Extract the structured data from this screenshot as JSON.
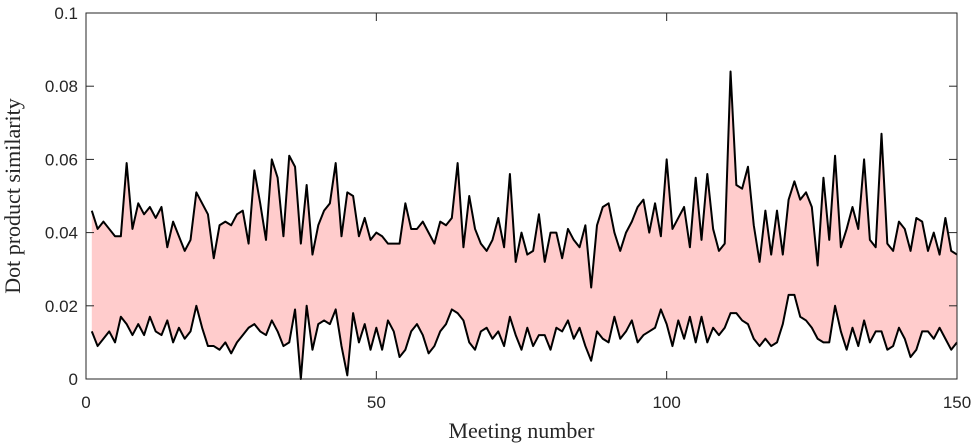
{
  "chart_data": {
    "type": "area",
    "xlabel": "Meeting number",
    "ylabel": "Dot product similarity",
    "xlim": [
      0,
      150
    ],
    "ylim": [
      0,
      0.1
    ],
    "xticks": [
      0,
      50,
      100,
      150
    ],
    "xtick_labels": [
      "0",
      "50",
      "100",
      "150"
    ],
    "yticks": [
      0,
      0.02,
      0.04,
      0.06,
      0.08,
      0.1
    ],
    "ytick_labels": [
      "0",
      "0.02",
      "0.04",
      "0.06",
      "0.08",
      "0.1"
    ],
    "grid": false,
    "band_fill_color": "#ffcccc",
    "line_color": "#000000",
    "x": [
      1,
      2,
      3,
      4,
      5,
      6,
      7,
      8,
      9,
      10,
      11,
      12,
      13,
      14,
      15,
      16,
      17,
      18,
      19,
      20,
      21,
      22,
      23,
      24,
      25,
      26,
      27,
      28,
      29,
      30,
      31,
      32,
      33,
      34,
      35,
      36,
      37,
      38,
      39,
      40,
      41,
      42,
      43,
      44,
      45,
      46,
      47,
      48,
      49,
      50,
      51,
      52,
      53,
      54,
      55,
      56,
      57,
      58,
      59,
      60,
      61,
      62,
      63,
      64,
      65,
      66,
      67,
      68,
      69,
      70,
      71,
      72,
      73,
      74,
      75,
      76,
      77,
      78,
      79,
      80,
      81,
      82,
      83,
      84,
      85,
      86,
      87,
      88,
      89,
      90,
      91,
      92,
      93,
      94,
      95,
      96,
      97,
      98,
      99,
      100,
      101,
      102,
      103,
      104,
      105,
      106,
      107,
      108,
      109,
      110,
      111,
      112,
      113,
      114,
      115,
      116,
      117,
      118,
      119,
      120,
      121,
      122,
      123,
      124,
      125,
      126,
      127,
      128,
      129,
      130,
      131,
      132,
      133,
      134,
      135,
      136,
      137,
      138,
      139,
      140,
      141,
      142,
      143,
      144,
      145,
      146,
      147,
      148,
      149,
      150
    ],
    "series": [
      {
        "values": [
          0.046,
          0.041,
          0.043,
          0.041,
          0.039,
          0.039,
          0.059,
          0.041,
          0.048,
          0.045,
          0.047,
          0.044,
          0.047,
          0.036,
          0.043,
          0.039,
          0.035,
          0.038,
          0.051,
          0.048,
          0.045,
          0.033,
          0.042,
          0.043,
          0.042,
          0.045,
          0.046,
          0.037,
          0.057,
          0.048,
          0.038,
          0.06,
          0.055,
          0.039,
          0.061,
          0.058,
          0.037,
          0.053,
          0.034,
          0.042,
          0.046,
          0.048,
          0.059,
          0.039,
          0.051,
          0.05,
          0.039,
          0.044,
          0.038,
          0.04,
          0.039,
          0.037,
          0.037,
          0.037,
          0.048,
          0.041,
          0.041,
          0.043,
          0.04,
          0.037,
          0.043,
          0.042,
          0.044,
          0.059,
          0.036,
          0.05,
          0.041,
          0.037,
          0.035,
          0.038,
          0.044,
          0.036,
          0.056,
          0.032,
          0.04,
          0.034,
          0.035,
          0.045,
          0.032,
          0.04,
          0.04,
          0.033,
          0.041,
          0.038,
          0.036,
          0.042,
          0.025,
          0.042,
          0.047,
          0.048,
          0.04,
          0.035,
          0.04,
          0.043,
          0.047,
          0.049,
          0.04,
          0.048,
          0.039,
          0.06,
          0.041,
          0.044,
          0.047,
          0.036,
          0.055,
          0.038,
          0.056,
          0.041,
          0.035,
          0.037,
          0.084,
          0.053,
          0.052,
          0.058,
          0.042,
          0.032,
          0.046,
          0.034,
          0.046,
          0.034,
          0.049,
          0.054,
          0.049,
          0.051,
          0.047,
          0.031,
          0.055,
          0.038,
          0.061,
          0.036,
          0.041,
          0.047,
          0.041,
          0.06,
          0.038,
          0.036,
          0.067,
          0.037,
          0.035,
          0.043,
          0.041,
          0.035,
          0.044,
          0.043,
          0.035,
          0.04,
          0.034,
          0.044,
          0.035,
          0.034
        ]
      },
      {
        "values": [
          0.013,
          0.009,
          0.011,
          0.013,
          0.01,
          0.017,
          0.015,
          0.012,
          0.015,
          0.012,
          0.017,
          0.013,
          0.012,
          0.016,
          0.01,
          0.014,
          0.011,
          0.013,
          0.02,
          0.014,
          0.009,
          0.009,
          0.008,
          0.01,
          0.007,
          0.01,
          0.012,
          0.014,
          0.015,
          0.013,
          0.012,
          0.016,
          0.013,
          0.009,
          0.01,
          0.019,
          0.0,
          0.02,
          0.008,
          0.015,
          0.016,
          0.015,
          0.019,
          0.009,
          0.001,
          0.018,
          0.01,
          0.015,
          0.008,
          0.014,
          0.008,
          0.016,
          0.013,
          0.006,
          0.008,
          0.013,
          0.015,
          0.012,
          0.007,
          0.009,
          0.013,
          0.015,
          0.019,
          0.018,
          0.016,
          0.01,
          0.008,
          0.013,
          0.014,
          0.011,
          0.013,
          0.009,
          0.017,
          0.012,
          0.008,
          0.014,
          0.009,
          0.012,
          0.012,
          0.008,
          0.014,
          0.013,
          0.016,
          0.011,
          0.014,
          0.009,
          0.005,
          0.013,
          0.011,
          0.01,
          0.017,
          0.011,
          0.013,
          0.016,
          0.01,
          0.012,
          0.013,
          0.014,
          0.019,
          0.015,
          0.009,
          0.016,
          0.011,
          0.017,
          0.01,
          0.017,
          0.01,
          0.014,
          0.012,
          0.014,
          0.018,
          0.018,
          0.016,
          0.015,
          0.011,
          0.009,
          0.011,
          0.009,
          0.01,
          0.015,
          0.023,
          0.023,
          0.017,
          0.016,
          0.014,
          0.011,
          0.01,
          0.01,
          0.02,
          0.013,
          0.008,
          0.014,
          0.009,
          0.016,
          0.01,
          0.013,
          0.013,
          0.008,
          0.009,
          0.014,
          0.011,
          0.006,
          0.008,
          0.013,
          0.013,
          0.011,
          0.014,
          0.011,
          0.008,
          0.01
        ]
      }
    ]
  }
}
